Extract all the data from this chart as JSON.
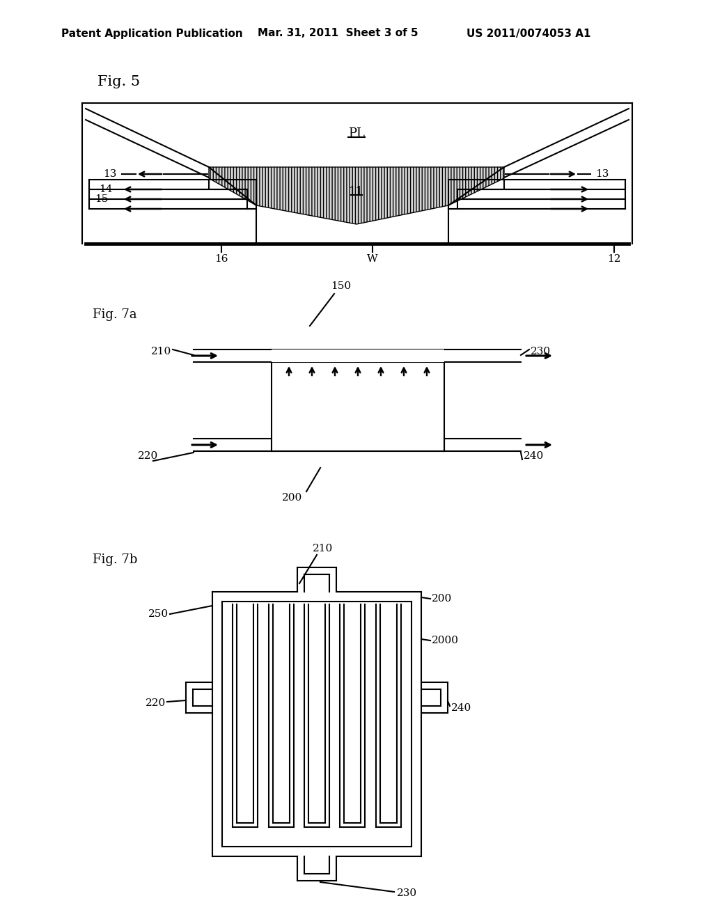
{
  "bg_color": "#ffffff",
  "line_color": "#000000",
  "header_left": "Patent Application Publication",
  "header_mid": "Mar. 31, 2011  Sheet 3 of 5",
  "header_right": "US 2011/0074053 A1"
}
